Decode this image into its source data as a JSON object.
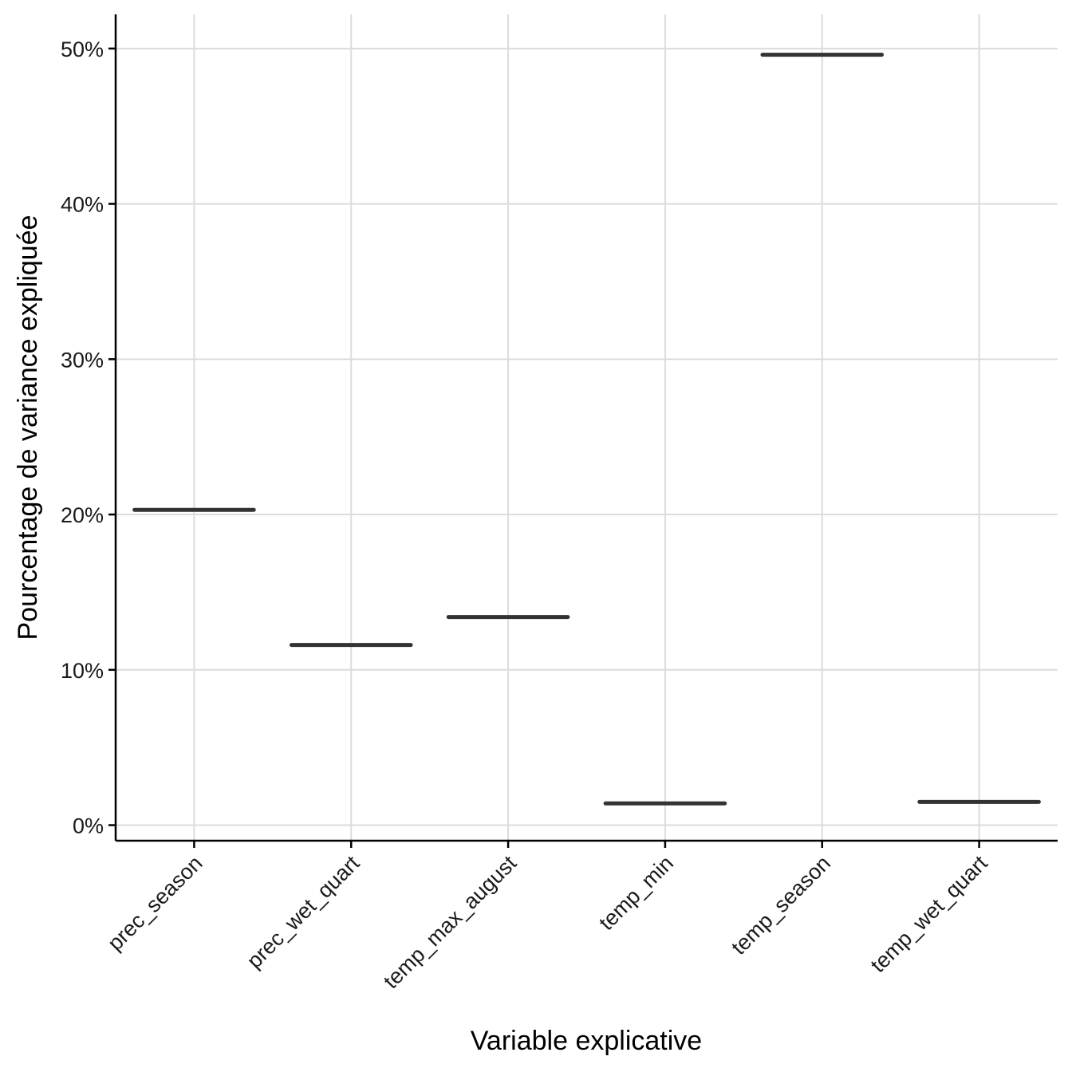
{
  "chart_data": {
    "type": "boxplot-median",
    "categories": [
      "prec_season",
      "prec_wet_quart",
      "temp_max_august",
      "temp_min",
      "temp_season",
      "temp_wet_quart"
    ],
    "values": [
      20.3,
      11.6,
      13.4,
      1.4,
      49.6,
      1.5
    ],
    "value_unit": "%",
    "xlabel": "Variable explicative",
    "ylabel": "Pourcentage de variance expliquée",
    "ylim": [
      -1.0,
      52.2
    ],
    "yticks": [
      0,
      10,
      20,
      30,
      40,
      50
    ],
    "ytick_labels": [
      "0%",
      "10%",
      "20%",
      "30%",
      "40%",
      "50%"
    ],
    "grid": true,
    "legend": "none"
  }
}
